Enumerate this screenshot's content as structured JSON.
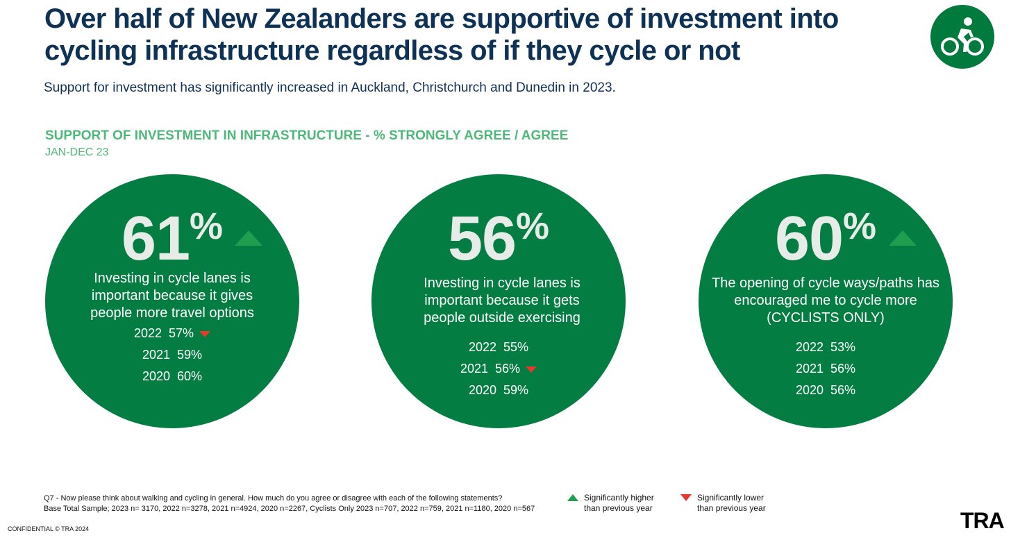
{
  "header": {
    "title": "Over half of New Zealanders are supportive of investment into cycling infrastructure regardless of if they cycle or not",
    "subtitle": "Support for investment has significantly increased in Auckland, Christchurch and Dunedin in 2023.",
    "icon": "cyclist-icon",
    "accent": "#007a3d"
  },
  "section": {
    "title": "SUPPORT OF INVESTMENT IN INFRASTRUCTURE - % STRONGLY AGREE / AGREE",
    "period": "JAN-DEC 23"
  },
  "chart_data": [
    {
      "type": "table",
      "headline_value": "61",
      "headline_unit": "%",
      "significance": "higher",
      "statement": "Investing in cycle lanes is important because it gives people more travel options",
      "history": [
        {
          "year": "2022",
          "value": "57%",
          "significance": "lower"
        },
        {
          "year": "2021",
          "value": "59%",
          "significance": ""
        },
        {
          "year": "2020",
          "value": "60%",
          "significance": ""
        }
      ]
    },
    {
      "type": "table",
      "headline_value": "56",
      "headline_unit": "%",
      "significance": "",
      "statement": "Investing in cycle lanes is important because it gets people outside exercising",
      "history": [
        {
          "year": "2022",
          "value": "55%",
          "significance": ""
        },
        {
          "year": "2021",
          "value": "56%",
          "significance": "lower"
        },
        {
          "year": "2020",
          "value": "59%",
          "significance": ""
        }
      ]
    },
    {
      "type": "table",
      "headline_value": "60",
      "headline_unit": "%",
      "significance": "higher",
      "statement": "The opening of cycle ways/paths has encouraged me to cycle more (CYCLISTS ONLY)",
      "history": [
        {
          "year": "2022",
          "value": "53%",
          "significance": ""
        },
        {
          "year": "2021",
          "value": "56%",
          "significance": ""
        },
        {
          "year": "2020",
          "value": "56%",
          "significance": ""
        }
      ]
    }
  ],
  "footnote": {
    "question": "Q7 - Now please think about walking and cycling in general. How much do you agree or disagree with each of the following statements?",
    "base": "Base Total Sample; 2023 n= 3170, 2022 n=3278, 2021 n=4924, 2020 n=2267, Cyclists Only 2023 n=707, 2022 n=759, 2021 n=1180, 2020 n=567"
  },
  "legend": {
    "higher_line1": "Significantly higher",
    "higher_line2": "than previous year",
    "lower_line1": "Significantly lower",
    "lower_line2": "than previous year",
    "higher_color": "#1f9e50",
    "lower_color": "#e8392d"
  },
  "footer": {
    "confidential": "CONFIDENTIAL © TRA 2024",
    "logo": "TRA"
  }
}
